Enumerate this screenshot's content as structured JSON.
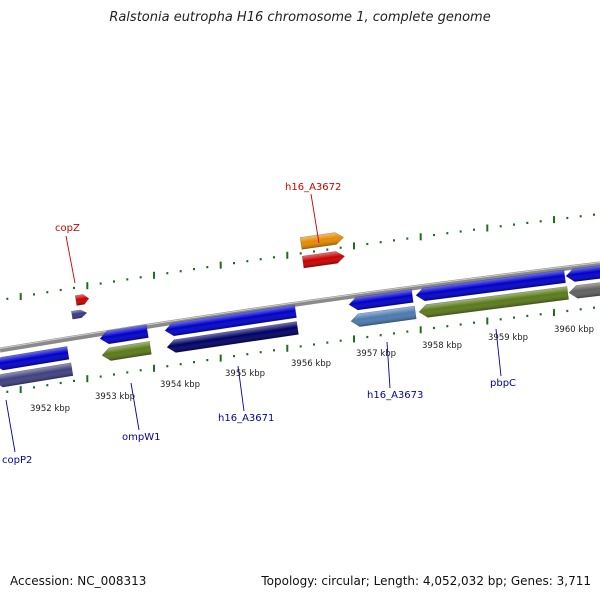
{
  "title": "Ralstonia eutropha H16 chromosome 1, complete genome",
  "footer": {
    "accession": "Accession: NC_008313",
    "summary": "Topology: circular; Length: 4,052,032 bp; Genes: 3,711"
  },
  "colors": {
    "backbone": "#8a8a8a",
    "tick": "#1f6e1f",
    "forward_label": "#cc0000",
    "reverse_label": "#0000aa"
  },
  "ticks": [
    {
      "label": "3952 kbp"
    },
    {
      "label": "3953 kbp"
    },
    {
      "label": "3954 kbp"
    },
    {
      "label": "3955 kbp"
    },
    {
      "label": "3956 kbp"
    },
    {
      "label": "3957 kbp"
    },
    {
      "label": "3958 kbp"
    },
    {
      "label": "3959 kbp"
    },
    {
      "label": "3960 kbp"
    }
  ],
  "gene_labels": [
    {
      "name": "copZ",
      "strand": "forward"
    },
    {
      "name": "h16_A3672",
      "strand": "forward"
    },
    {
      "name": "copP2",
      "strand": "reverse"
    },
    {
      "name": "ompW1",
      "strand": "reverse"
    },
    {
      "name": "h16_A3671",
      "strand": "reverse"
    },
    {
      "name": "h16_A3673",
      "strand": "reverse"
    },
    {
      "name": "pbpC",
      "strand": "reverse"
    }
  ],
  "features": [
    {
      "id": "copZ-cds",
      "color": "#cc0000"
    },
    {
      "id": "copZ-gene",
      "color": "#3a3a80"
    },
    {
      "id": "h16_A3672-cds",
      "color": "#cc0000"
    },
    {
      "id": "h16_A3672-gene",
      "color": "#e68a00"
    },
    {
      "id": "copP2-cds",
      "color": "#0000cc"
    },
    {
      "id": "copP2-gene",
      "color": "#404080"
    },
    {
      "id": "ompW1-cds",
      "color": "#0000cc"
    },
    {
      "id": "ompW1-gene",
      "color": "#5a7a1a"
    },
    {
      "id": "h16_A3671-cds",
      "color": "#0000cc"
    },
    {
      "id": "h16_A3671-gene",
      "color": "#000066"
    },
    {
      "id": "h16_A3673-cds",
      "color": "#0000cc"
    },
    {
      "id": "h16_A3673-gene",
      "color": "#4a7ab0"
    },
    {
      "id": "pbpC-cds",
      "color": "#0000cc"
    },
    {
      "id": "pbpC-gene",
      "color": "#5a7a1a"
    },
    {
      "id": "right-cds",
      "color": "#0000cc"
    },
    {
      "id": "right-gene",
      "color": "#606060"
    }
  ]
}
